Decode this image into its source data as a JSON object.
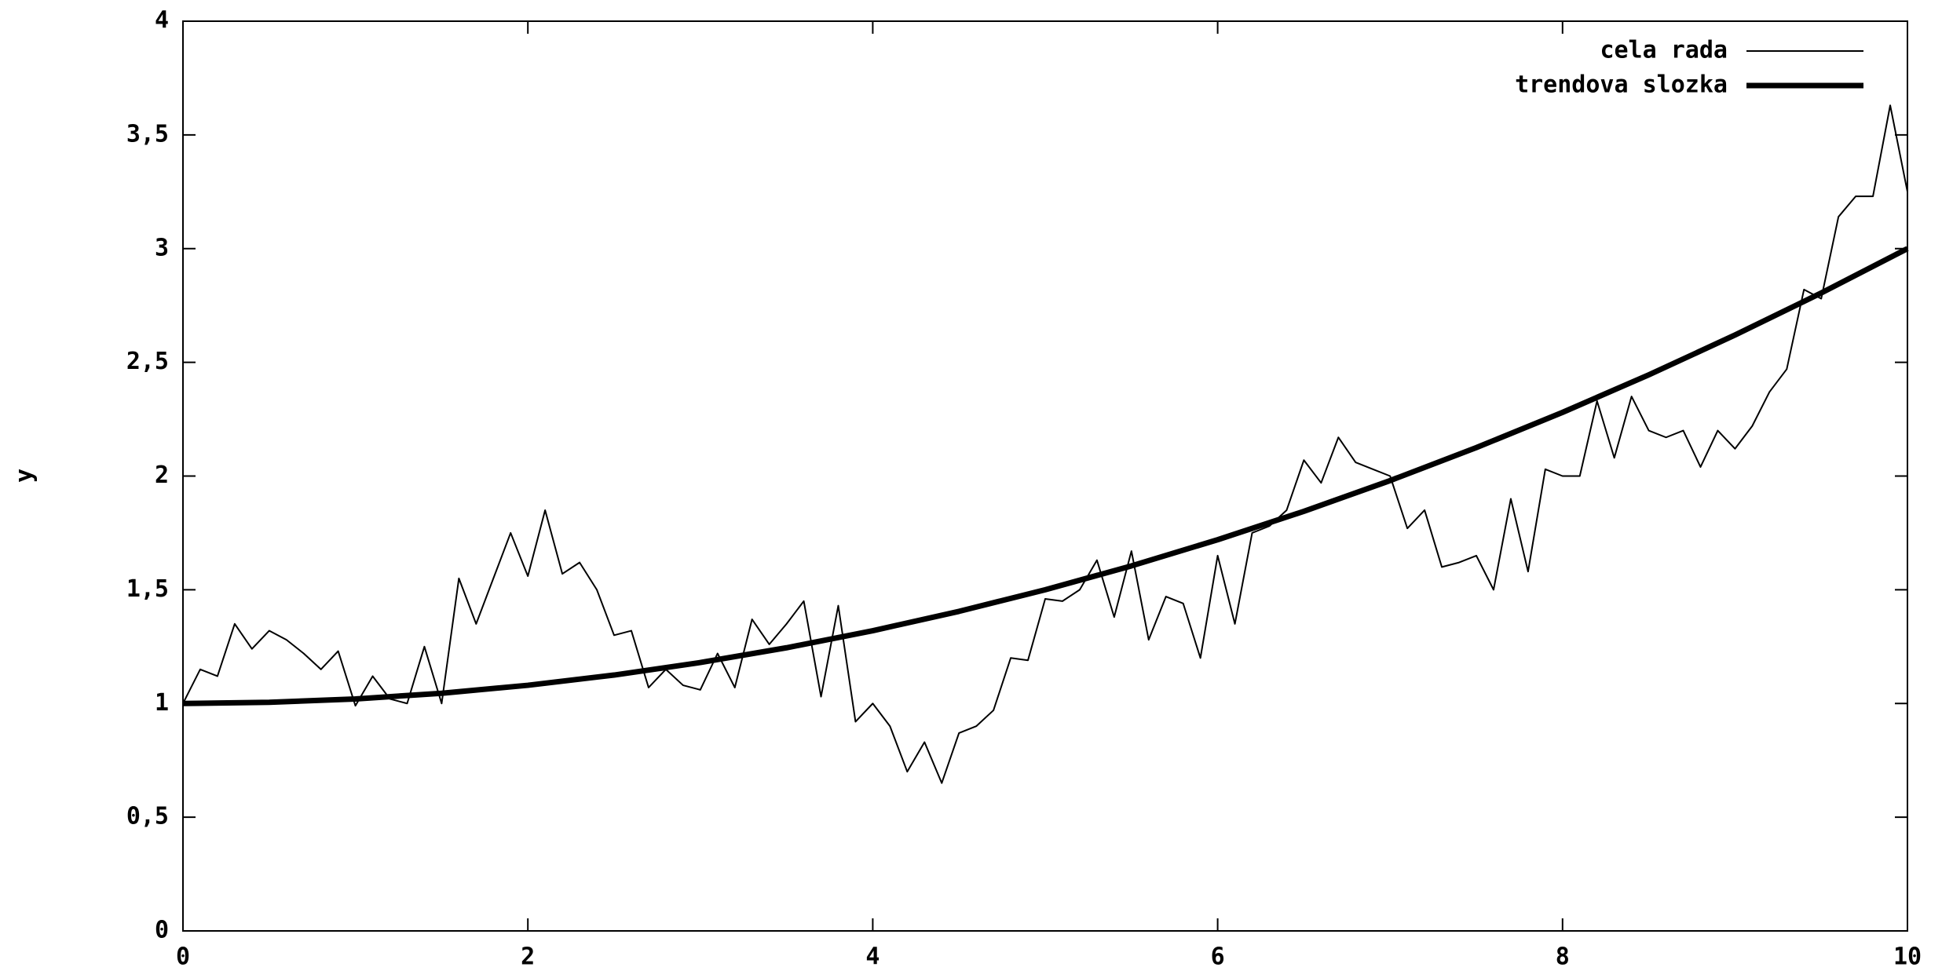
{
  "chart_data": {
    "type": "line",
    "ylabel": "y",
    "xlim": [
      0,
      10
    ],
    "xticks": [
      0,
      2,
      4,
      6,
      8,
      10
    ],
    "ylim": [
      0,
      4
    ],
    "yticks": [
      0,
      {
        "value": 0.5,
        "label": "0,5"
      },
      1,
      {
        "value": 1.5,
        "label": "1,5"
      },
      2,
      {
        "value": 2.5,
        "label": "2,5"
      },
      3,
      {
        "value": 3.5,
        "label": "3,5"
      },
      4
    ],
    "legend": "top-right",
    "series": [
      {
        "name": "cela rada",
        "color": "#000000",
        "x": [
          0,
          0.1,
          0.2,
          0.3,
          0.4,
          0.5,
          0.6,
          0.7,
          0.8,
          0.9,
          1,
          1.1,
          1.2,
          1.3,
          1.4,
          1.5,
          1.6,
          1.7,
          1.8,
          1.9,
          2,
          2.1,
          2.2,
          2.3,
          2.4,
          2.5,
          2.6,
          2.7,
          2.8,
          2.9,
          3,
          3.1,
          3.2,
          3.3,
          3.4,
          3.5,
          3.6,
          3.7,
          3.8,
          3.9,
          4,
          4.1,
          4.2,
          4.3,
          4.4,
          4.5,
          4.6,
          4.7,
          4.8,
          4.9,
          5,
          5.1,
          5.2,
          5.3,
          5.4,
          5.5,
          5.6,
          5.7,
          5.8,
          5.9,
          6,
          6.1,
          6.2,
          6.3,
          6.4,
          6.5,
          6.6,
          6.7,
          6.8,
          6.9,
          7,
          7.1,
          7.2,
          7.3,
          7.4,
          7.5,
          7.6,
          7.7,
          7.8,
          7.9,
          8,
          8.1,
          8.2,
          8.3,
          8.4,
          8.5,
          8.6,
          8.7,
          8.8,
          8.9,
          9,
          9.1,
          9.2,
          9.3,
          9.4,
          9.5,
          9.6,
          9.7,
          9.8,
          9.9,
          10
        ],
        "values": [
          1,
          1.15,
          1.12,
          1.35,
          1.24,
          1.32,
          1.28,
          1.22,
          1.15,
          1.23,
          0.99,
          1.12,
          1.02,
          1,
          1.25,
          1,
          1.55,
          1.35,
          1.55,
          1.75,
          1.56,
          1.85,
          1.57,
          1.62,
          1.5,
          1.3,
          1.32,
          1.07,
          1.15,
          1.08,
          1.06,
          1.22,
          1.07,
          1.37,
          1.26,
          1.35,
          1.45,
          1.03,
          1.43,
          0.92,
          1,
          0.9,
          0.7,
          0.83,
          0.65,
          0.87,
          0.9,
          0.97,
          1.2,
          1.19,
          1.46,
          1.45,
          1.5,
          1.63,
          1.38,
          1.67,
          1.28,
          1.47,
          1.44,
          1.2,
          1.65,
          1.35,
          1.75,
          1.78,
          1.85,
          2.07,
          1.97,
          2.17,
          2.06,
          2.03,
          2,
          1.77,
          1.85,
          1.6,
          1.62,
          1.65,
          1.5,
          1.9,
          1.58,
          2.03,
          2,
          2,
          2.33,
          2.08,
          2.35,
          2.2,
          2.17,
          2.2,
          2.04,
          2.2,
          2.12,
          2.22,
          2.37,
          2.47,
          2.82,
          2.78,
          3.14,
          3.23,
          3.23,
          3.63,
          3.25
        ]
      },
      {
        "name": "trendova slozka",
        "color": "#000000",
        "x": [
          0,
          0.5,
          1,
          1.5,
          2,
          2.5,
          3,
          3.5,
          4,
          4.5,
          5,
          5.5,
          6,
          6.5,
          7,
          7.5,
          8,
          8.5,
          9,
          9.5,
          10
        ],
        "values": [
          1,
          1.005,
          1.02,
          1.045,
          1.08,
          1.125,
          1.18,
          1.245,
          1.32,
          1.405,
          1.5,
          1.605,
          1.72,
          1.845,
          1.98,
          2.125,
          2.28,
          2.445,
          2.62,
          2.805,
          3
        ]
      }
    ]
  }
}
